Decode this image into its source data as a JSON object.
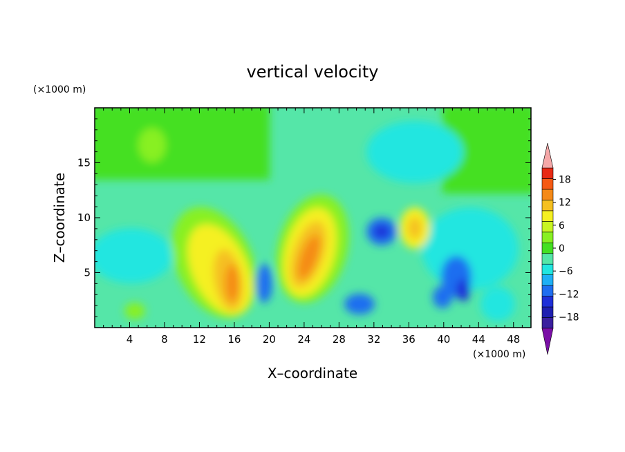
{
  "chart_data": {
    "type": "heatmap",
    "title": "vertical velocity",
    "xlabel": "X–coordinate",
    "ylabel": "Z–coordinate",
    "x_unit_label": "(×1000 m)",
    "y_unit_label": "(×1000 m)",
    "xlim": [
      0,
      50
    ],
    "ylim": [
      0,
      20
    ],
    "x_ticks": [
      4,
      8,
      12,
      16,
      20,
      24,
      28,
      32,
      36,
      40,
      44,
      48
    ],
    "y_ticks": [
      5,
      10,
      15
    ],
    "colorbar": {
      "levels": [
        -21,
        -18,
        -15,
        -12,
        -9,
        -6,
        -3,
        0,
        3,
        6,
        9,
        12,
        15,
        18,
        21
      ],
      "tick_labels": [
        18,
        12,
        6,
        0,
        -6,
        -12,
        -18
      ],
      "colors": [
        "#7a0fa6",
        "#3a1f9e",
        "#1f1fb0",
        "#1f2fd8",
        "#1f6ef0",
        "#1fb0f5",
        "#22e6e0",
        "#55e6a8",
        "#44e022",
        "#88f022",
        "#c8f522",
        "#f5f022",
        "#f5c020",
        "#f58a18",
        "#f55a14",
        "#e82a14",
        "#f5a8a8"
      ],
      "extend": "both"
    },
    "features": [
      {
        "x": 15.5,
        "z": 3.5,
        "value": 16
      },
      {
        "x": 24.5,
        "z": 7.0,
        "value": 15
      },
      {
        "x": 36.5,
        "z": 9.0,
        "value": 8
      },
      {
        "x": 34.0,
        "z": 8.5,
        "value": -10
      },
      {
        "x": 19.5,
        "z": 4.5,
        "value": -8
      },
      {
        "x": 42.0,
        "z": 5.0,
        "value": -9
      },
      {
        "x": 30.5,
        "z": 2.5,
        "value": -8
      }
    ]
  }
}
